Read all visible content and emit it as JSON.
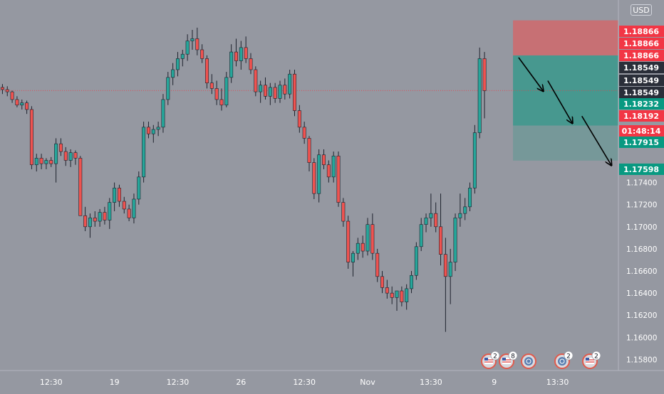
{
  "currency": "USD",
  "chart_data": {
    "type": "candlestick",
    "ylim": [
      1.157,
      1.1905
    ],
    "y_ticks": [
      1.158,
      1.16,
      1.162,
      1.164,
      1.166,
      1.168,
      1.17,
      1.172,
      1.174
    ],
    "y_tick_labels": [
      "1.15800",
      "1.16000",
      "1.16200",
      "1.16400",
      "1.16600",
      "1.16800",
      "1.17000",
      "1.17200",
      "1.17400"
    ],
    "x_ticks": [
      {
        "index": 10,
        "label": "12:30"
      },
      {
        "index": 23,
        "label": "19"
      },
      {
        "index": 36,
        "label": "12:30"
      },
      {
        "index": 49,
        "label": "26"
      },
      {
        "index": 62,
        "label": "12:30"
      },
      {
        "index": 75,
        "label": "Nov"
      },
      {
        "index": 88,
        "label": "13:30"
      },
      {
        "index": 101,
        "label": "9"
      },
      {
        "index": 114,
        "label": "13:30"
      }
    ],
    "bars_in_view": 127,
    "current_price": 1.18232,
    "series": [
      {
        "values": [
          [
            1.1826,
            1.1829,
            1.182,
            1.1824
          ],
          [
            1.1824,
            1.1827,
            1.1818,
            1.1822
          ],
          [
            1.1822,
            1.1823,
            1.1812,
            1.1815
          ],
          [
            1.1815,
            1.1818,
            1.1808,
            1.181
          ],
          [
            1.181,
            1.1815,
            1.1806,
            1.1812
          ],
          [
            1.1812,
            1.1814,
            1.1802,
            1.1806
          ],
          [
            1.1806,
            1.1809,
            1.1752,
            1.1756
          ],
          [
            1.1756,
            1.1766,
            1.175,
            1.1762
          ],
          [
            1.1762,
            1.1766,
            1.1752,
            1.1757
          ],
          [
            1.1757,
            1.1762,
            1.1752,
            1.176
          ],
          [
            1.176,
            1.1763,
            1.1754,
            1.1757
          ],
          [
            1.1757,
            1.178,
            1.174,
            1.1775
          ],
          [
            1.1775,
            1.178,
            1.1764,
            1.1768
          ],
          [
            1.1768,
            1.1772,
            1.1755,
            1.176
          ],
          [
            1.176,
            1.177,
            1.1754,
            1.1767
          ],
          [
            1.1767,
            1.1769,
            1.1756,
            1.1762
          ],
          [
            1.1762,
            1.1764,
            1.1712,
            1.171
          ],
          [
            1.171,
            1.1718,
            1.1696,
            1.17
          ],
          [
            1.17,
            1.1712,
            1.169,
            1.1708
          ],
          [
            1.1708,
            1.1714,
            1.17,
            1.1705
          ],
          [
            1.1705,
            1.1716,
            1.17,
            1.1713
          ],
          [
            1.1713,
            1.1718,
            1.1702,
            1.1706
          ],
          [
            1.1706,
            1.1726,
            1.1698,
            1.1722
          ],
          [
            1.1722,
            1.174,
            1.1714,
            1.1735
          ],
          [
            1.1735,
            1.1738,
            1.1718,
            1.1723
          ],
          [
            1.1723,
            1.1727,
            1.1712,
            1.1716
          ],
          [
            1.1716,
            1.172,
            1.1705,
            1.1708
          ],
          [
            1.1708,
            1.173,
            1.1703,
            1.1725
          ],
          [
            1.1725,
            1.175,
            1.172,
            1.1745
          ],
          [
            1.1745,
            1.1795,
            1.174,
            1.179
          ],
          [
            1.179,
            1.1795,
            1.178,
            1.1784
          ],
          [
            1.1784,
            1.1792,
            1.1776,
            1.1788
          ],
          [
            1.1788,
            1.1795,
            1.1782,
            1.179
          ],
          [
            1.179,
            1.182,
            1.1785,
            1.1815
          ],
          [
            1.1815,
            1.184,
            1.181,
            1.1835
          ],
          [
            1.1835,
            1.1848,
            1.1828,
            1.1842
          ],
          [
            1.1842,
            1.1858,
            1.1836,
            1.1852
          ],
          [
            1.1852,
            1.186,
            1.1845,
            1.1856
          ],
          [
            1.1856,
            1.1874,
            1.185,
            1.1868
          ],
          [
            1.1868,
            1.1878,
            1.186,
            1.187
          ],
          [
            1.187,
            1.188,
            1.1855,
            1.186
          ],
          [
            1.186,
            1.1865,
            1.1848,
            1.1852
          ],
          [
            1.1852,
            1.1855,
            1.1825,
            1.183
          ],
          [
            1.183,
            1.1838,
            1.182,
            1.1825
          ],
          [
            1.1825,
            1.1832,
            1.181,
            1.1815
          ],
          [
            1.1815,
            1.1825,
            1.1805,
            1.181
          ],
          [
            1.181,
            1.184,
            1.1808,
            1.1835
          ],
          [
            1.1835,
            1.1865,
            1.183,
            1.1858
          ],
          [
            1.1858,
            1.187,
            1.1845,
            1.185
          ],
          [
            1.185,
            1.1868,
            1.1842,
            1.1862
          ],
          [
            1.1862,
            1.1872,
            1.1848,
            1.1852
          ],
          [
            1.1852,
            1.1857,
            1.1838,
            1.1842
          ],
          [
            1.1842,
            1.1845,
            1.1818,
            1.1822
          ],
          [
            1.1822,
            1.1832,
            1.1812,
            1.1828
          ],
          [
            1.1828,
            1.1835,
            1.1815,
            1.1818
          ],
          [
            1.1818,
            1.183,
            1.181,
            1.1826
          ],
          [
            1.1826,
            1.183,
            1.1812,
            1.1816
          ],
          [
            1.1816,
            1.1832,
            1.1812,
            1.1828
          ],
          [
            1.1828,
            1.1834,
            1.1815,
            1.182
          ],
          [
            1.182,
            1.1842,
            1.1816,
            1.1838
          ],
          [
            1.1838,
            1.1842,
            1.18,
            1.1805
          ],
          [
            1.1805,
            1.181,
            1.1785,
            1.179
          ],
          [
            1.179,
            1.1795,
            1.1775,
            1.178
          ],
          [
            1.178,
            1.1782,
            1.175,
            1.1758
          ],
          [
            1.1758,
            1.1762,
            1.1725,
            1.173
          ],
          [
            1.173,
            1.177,
            1.1722,
            1.1765
          ],
          [
            1.1765,
            1.177,
            1.1752,
            1.1756
          ],
          [
            1.1756,
            1.176,
            1.174,
            1.1745
          ],
          [
            1.1745,
            1.1768,
            1.174,
            1.1764
          ],
          [
            1.1764,
            1.1768,
            1.1718,
            1.1722
          ],
          [
            1.1722,
            1.1726,
            1.17,
            1.1705
          ],
          [
            1.1705,
            1.171,
            1.1662,
            1.1668
          ],
          [
            1.1668,
            1.1678,
            1.1655,
            1.1676
          ],
          [
            1.1676,
            1.169,
            1.167,
            1.1685
          ],
          [
            1.1685,
            1.1692,
            1.1672,
            1.1678
          ],
          [
            1.1678,
            1.1708,
            1.1674,
            1.1702
          ],
          [
            1.1702,
            1.1712,
            1.167,
            1.1676
          ],
          [
            1.1676,
            1.168,
            1.165,
            1.1655
          ],
          [
            1.1655,
            1.166,
            1.164,
            1.1645
          ],
          [
            1.1645,
            1.1652,
            1.1635,
            1.164
          ],
          [
            1.164,
            1.1646,
            1.163,
            1.1636
          ],
          [
            1.1636,
            1.1642,
            1.1624,
            1.1642
          ],
          [
            1.1642,
            1.1646,
            1.1628,
            1.1632
          ],
          [
            1.1632,
            1.1648,
            1.1625,
            1.1644
          ],
          [
            1.1644,
            1.166,
            1.164,
            1.1656
          ],
          [
            1.1656,
            1.1686,
            1.1652,
            1.1682
          ],
          [
            1.1682,
            1.1708,
            1.1678,
            1.1702
          ],
          [
            1.1702,
            1.1712,
            1.1695,
            1.1708
          ],
          [
            1.1708,
            1.173,
            1.17,
            1.1712
          ],
          [
            1.1712,
            1.1722,
            1.1695,
            1.17
          ],
          [
            1.17,
            1.173,
            1.1665,
            1.1675
          ],
          [
            1.1675,
            1.169,
            1.1605,
            1.1655
          ],
          [
            1.1655,
            1.168,
            1.163,
            1.1668
          ],
          [
            1.1668,
            1.1712,
            1.166,
            1.1708
          ],
          [
            1.1708,
            1.173,
            1.17,
            1.1712
          ],
          [
            1.1712,
            1.1726,
            1.1706,
            1.1718
          ],
          [
            1.1718,
            1.174,
            1.1714,
            1.1735
          ],
          [
            1.1735,
            1.1792,
            1.173,
            1.1785
          ],
          [
            1.1785,
            1.1862,
            1.178,
            1.1852
          ],
          [
            1.1852,
            1.1858,
            1.1798,
            1.1823
          ]
        ],
        "color_up": "#26a69a",
        "color_down": "#ef5350"
      }
    ],
    "position_tool": {
      "type": "short",
      "stop_loss": 1.18866,
      "entry": 1.18549,
      "take_profit": 1.17598,
      "target_mid": 1.17915,
      "loss_color": "#f05050",
      "profit_color": "#089981"
    },
    "arrows": 3,
    "price_labels": [
      {
        "text": "1.18866",
        "bg": "#f23645",
        "fg": "#ffffff"
      },
      {
        "text": "1.18866",
        "bg": "#f23645",
        "fg": "#ffffff"
      },
      {
        "text": "1.18866",
        "bg": "#f23645",
        "fg": "#ffffff"
      },
      {
        "text": "1.18549",
        "bg": "#2a2e39",
        "fg": "#ffffff"
      },
      {
        "text": "1.18549",
        "bg": "#2a2e39",
        "fg": "#ffffff"
      },
      {
        "text": "1.18549",
        "bg": "#2a2e39",
        "fg": "#ffffff"
      },
      {
        "text": "1.18232",
        "bg": "#089981",
        "fg": "#ffffff"
      },
      {
        "text": "1.18192",
        "bg": "#f23645",
        "fg": "#ffffff"
      },
      {
        "text": "01:48:14",
        "bg": "#f23645",
        "fg": "#ffffff"
      },
      {
        "text": "1.17915",
        "bg": "#089981",
        "fg": "#ffffff"
      },
      {
        "text": "1.17598",
        "bg": "#089981",
        "fg": "#ffffff"
      }
    ],
    "events": [
      {
        "icon": "us-flag-icon",
        "count": "2"
      },
      {
        "icon": "us-flag-icon",
        "count": "8"
      },
      {
        "icon": "world-icon",
        "count": ""
      },
      {
        "icon": "world-icon",
        "count": "2"
      },
      {
        "icon": "us-flag-icon",
        "count": "2"
      }
    ]
  }
}
